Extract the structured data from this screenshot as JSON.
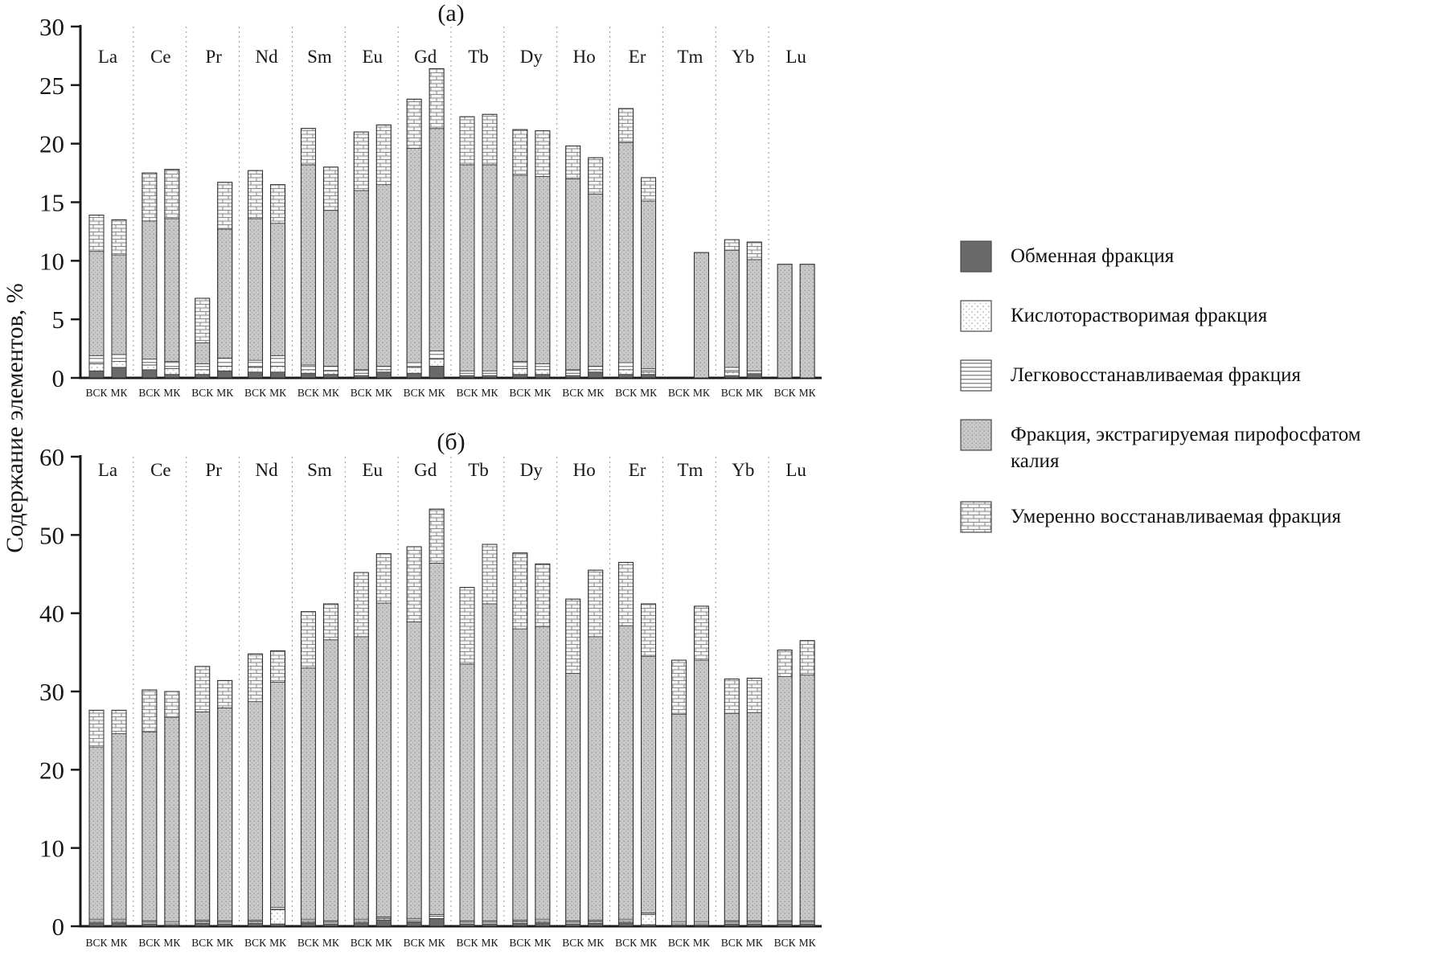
{
  "chart_data": {
    "type": "bar",
    "stacked": true,
    "ylabel": "Содержание элементов, %",
    "categories": [
      "La",
      "Ce",
      "Pr",
      "Nd",
      "Sm",
      "Eu",
      "Gd",
      "Tb",
      "Dy",
      "Ho",
      "Er",
      "Tm",
      "Yb",
      "Lu"
    ],
    "bar_labels": [
      "ВСК",
      "МК"
    ],
    "fractions": [
      "Обменная фракция",
      "Кислоторастворимая фракция",
      "Легковосстанавливаемая фракция",
      "Фракция, экстрагируемая пирофосфатом калия",
      "Умеренно восстанавливаемая фракция"
    ],
    "palette": {
      "exchange": "#6a6a6a",
      "pattern_line": "#8a8a8a",
      "pyrophosphate_bg": "#cacaca",
      "brick_bg": "#f5f5f5"
    },
    "panels": [
      {
        "title": "(а)",
        "ylim": [
          0,
          30
        ],
        "yticks": [
          0,
          5,
          10,
          15,
          20,
          25,
          30
        ],
        "bars": [
          {
            "element": "La",
            "ВСК": [
              0.6,
              0.6,
              0.7,
              8.9,
              3.1
            ],
            "МК": [
              0.9,
              0.5,
              0.6,
              8.5,
              3.0
            ]
          },
          {
            "element": "Ce",
            "ВСК": [
              0.7,
              0.4,
              0.5,
              11.8,
              4.1
            ],
            "МК": [
              0.3,
              0.5,
              0.6,
              12.2,
              4.2
            ]
          },
          {
            "element": "Pr",
            "ВСК": [
              0.3,
              0.4,
              0.5,
              1.8,
              3.8
            ],
            "МК": [
              0.6,
              0.4,
              0.7,
              11.0,
              4.0
            ]
          },
          {
            "element": "Nd",
            "ВСК": [
              0.5,
              0.4,
              0.6,
              12.1,
              4.1
            ],
            "МК": [
              0.5,
              0.5,
              0.9,
              11.3,
              3.3
            ]
          },
          {
            "element": "Sm",
            "ВСК": [
              0.4,
              0.3,
              0.4,
              17.1,
              3.1
            ],
            "МК": [
              0.3,
              0.3,
              0.4,
              13.3,
              3.7
            ]
          },
          {
            "element": "Eu",
            "ВСК": [
              0.2,
              0.2,
              0.3,
              15.3,
              5.0
            ],
            "МК": [
              0.5,
              0.2,
              0.3,
              15.5,
              5.1
            ]
          },
          {
            "element": "Gd",
            "ВСК": [
              0.4,
              0.5,
              0.4,
              18.3,
              4.2
            ],
            "МК": [
              1.0,
              0.6,
              0.7,
              19.0,
              5.1
            ]
          },
          {
            "element": "Tb",
            "ВСК": [
              0.2,
              0.2,
              0.2,
              17.6,
              4.1
            ],
            "МК": [
              0.2,
              0.2,
              0.2,
              17.6,
              4.3
            ]
          },
          {
            "element": "Dy",
            "ВСК": [
              0.3,
              0.5,
              0.6,
              15.9,
              3.9
            ],
            "МК": [
              0.3,
              0.4,
              0.5,
              16.0,
              3.9
            ]
          },
          {
            "element": "Ho",
            "ВСК": [
              0.2,
              0.2,
              0.3,
              16.3,
              2.8
            ],
            "МК": [
              0.5,
              0.2,
              0.3,
              14.7,
              3.1
            ]
          },
          {
            "element": "Er",
            "ВСК": [
              0.3,
              0.4,
              0.6,
              18.8,
              2.9
            ],
            "МК": [
              0.3,
              0.2,
              0.3,
              14.3,
              2.0
            ]
          },
          {
            "element": "Tm",
            "ВСК": [
              0,
              0,
              0,
              0,
              0
            ],
            "МК": [
              0,
              0,
              0,
              10.7,
              0
            ]
          },
          {
            "element": "Yb",
            "ВСК": [
              0.2,
              0.3,
              0.4,
              10.0,
              0.9
            ],
            "МК": [
              0.3,
              0.1,
              0.2,
              9.5,
              1.5
            ]
          },
          {
            "element": "Lu",
            "ВСК": [
              0,
              0,
              0,
              9.7,
              0
            ],
            "МК": [
              0,
              0,
              0,
              9.7,
              0
            ]
          }
        ]
      },
      {
        "title": "(б)",
        "ylim": [
          0,
          60
        ],
        "yticks": [
          0,
          10,
          20,
          30,
          40,
          50,
          60
        ],
        "bars": [
          {
            "element": "La",
            "ВСК": [
              0.5,
              0.2,
              0.2,
              22.0,
              4.7
            ],
            "МК": [
              0.5,
              0.2,
              0.2,
              23.7,
              3.0
            ]
          },
          {
            "element": "Ce",
            "ВСК": [
              0.3,
              0.2,
              0.2,
              24.1,
              5.4
            ],
            "МК": [
              0.2,
              0.2,
              0.2,
              26.1,
              3.3
            ]
          },
          {
            "element": "Pr",
            "ВСК": [
              0.4,
              0.2,
              0.2,
              26.6,
              5.8
            ],
            "МК": [
              0.3,
              0.2,
              0.2,
              27.2,
              3.5
            ]
          },
          {
            "element": "Nd",
            "ВСК": [
              0.4,
              0.2,
              0.2,
              27.9,
              6.1
            ],
            "МК": [
              0.3,
              1.8,
              0.3,
              28.8,
              4.0
            ]
          },
          {
            "element": "Sm",
            "ВСК": [
              0.5,
              0.2,
              0.2,
              32.1,
              7.2
            ],
            "МК": [
              0.3,
              0.2,
              0.2,
              35.9,
              4.6
            ]
          },
          {
            "element": "Eu",
            "ВСК": [
              0.5,
              0.2,
              0.2,
              36.1,
              8.2
            ],
            "МК": [
              0.8,
              0.2,
              0.2,
              40.1,
              6.3
            ]
          },
          {
            "element": "Gd",
            "ВСК": [
              0.6,
              0.2,
              0.2,
              37.9,
              9.6
            ],
            "МК": [
              1.0,
              0.3,
              0.2,
              44.9,
              6.9
            ]
          },
          {
            "element": "Tb",
            "ВСК": [
              0.3,
              0.2,
              0.2,
              32.8,
              9.8
            ],
            "МК": [
              0.3,
              0.2,
              0.2,
              40.5,
              7.6
            ]
          },
          {
            "element": "Dy",
            "ВСК": [
              0.4,
              0.2,
              0.2,
              37.2,
              9.7
            ],
            "МК": [
              0.5,
              0.2,
              0.2,
              37.4,
              8.0
            ]
          },
          {
            "element": "Ho",
            "ВСК": [
              0.3,
              0.2,
              0.2,
              31.6,
              9.5
            ],
            "МК": [
              0.4,
              0.2,
              0.2,
              36.2,
              8.5
            ]
          },
          {
            "element": "Er",
            "ВСК": [
              0.5,
              0.2,
              0.2,
              37.5,
              8.1
            ],
            "МК": [
              0.2,
              1.3,
              0.2,
              32.8,
              6.7
            ]
          },
          {
            "element": "Tm",
            "ВСК": [
              0.2,
              0.2,
              0.2,
              26.5,
              6.9
            ],
            "МК": [
              0.2,
              0.2,
              0.2,
              33.4,
              6.9
            ]
          },
          {
            "element": "Yb",
            "ВСК": [
              0.3,
              0.2,
              0.2,
              26.5,
              4.4
            ],
            "МК": [
              0.3,
              0.2,
              0.2,
              26.6,
              4.4
            ]
          },
          {
            "element": "Lu",
            "ВСК": [
              0.3,
              0.2,
              0.2,
              31.2,
              3.4
            ],
            "МК": [
              0.3,
              0.2,
              0.2,
              31.4,
              4.4
            ]
          }
        ]
      }
    ]
  }
}
